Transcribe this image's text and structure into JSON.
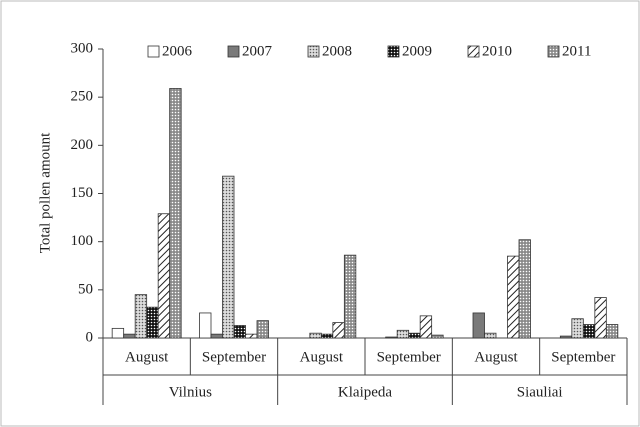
{
  "chart_data": {
    "type": "bar",
    "y_label": "Total pollen amount",
    "categories": [
      "August",
      "September",
      "August",
      "September",
      "August",
      "September"
    ],
    "category_groups": [
      "Vilnius",
      "Klaipeda",
      "Siauliai"
    ],
    "series": [
      {
        "name": "2006",
        "color": "#ffffff",
        "pattern": "none",
        "values": [
          10,
          26,
          0,
          0,
          0,
          0
        ]
      },
      {
        "name": "2007",
        "color": "#7a7a7a",
        "pattern": "none",
        "values": [
          4,
          4,
          0,
          1,
          26,
          2
        ]
      },
      {
        "name": "2008",
        "color": "#dddddd",
        "pattern": "dots",
        "values": [
          45,
          168,
          5,
          8,
          5,
          20
        ]
      },
      {
        "name": "2009",
        "color": "#111111",
        "pattern": "dots",
        "values": [
          32,
          13,
          4,
          5,
          0,
          14
        ]
      },
      {
        "name": "2010",
        "color": "#222222",
        "pattern": "hatch",
        "values": [
          129,
          4,
          16,
          23,
          85,
          42
        ]
      },
      {
        "name": "2011",
        "color": "#8a8a8a",
        "pattern": "dots",
        "values": [
          259,
          18,
          86,
          3,
          102,
          14
        ]
      }
    ],
    "ylim": [
      0,
      300
    ],
    "yticks": [
      0,
      50,
      100,
      150,
      200,
      250,
      300
    ],
    "grid": false,
    "legend": "top"
  }
}
